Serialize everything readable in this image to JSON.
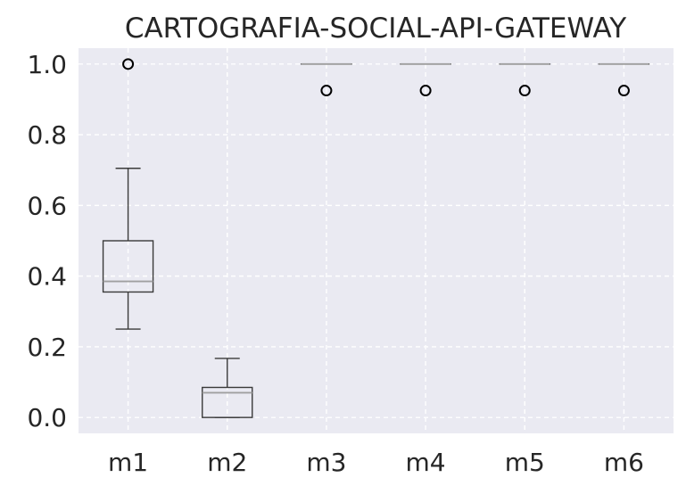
{
  "chart_data": {
    "type": "boxplot",
    "title": "CARTOGRAFIA-SOCIAL-API-GATEWAY",
    "xlabel": "",
    "ylabel": "",
    "categories": [
      "m1",
      "m2",
      "m3",
      "m4",
      "m5",
      "m6"
    ],
    "ylim": [
      -0.045,
      1.045
    ],
    "yticks": [
      0.0,
      0.2,
      0.4,
      0.6,
      0.8,
      1.0
    ],
    "ytick_labels": [
      "0.0",
      "0.2",
      "0.4",
      "0.6",
      "0.8",
      "1.0"
    ],
    "grid": true,
    "boxes": [
      {
        "whisker_low": 0.25,
        "q1": 0.355,
        "median": 0.385,
        "q3": 0.5,
        "whisker_high": 0.705,
        "outliers": [
          1.0
        ]
      },
      {
        "whisker_low": 0.0,
        "q1": 0.0,
        "median": 0.07,
        "q3": 0.085,
        "whisker_high": 0.167,
        "outliers": []
      },
      {
        "whisker_low": 1.0,
        "q1": 1.0,
        "median": 1.0,
        "q3": 1.0,
        "whisker_high": 1.0,
        "outliers": [
          0.925
        ]
      },
      {
        "whisker_low": 1.0,
        "q1": 1.0,
        "median": 1.0,
        "q3": 1.0,
        "whisker_high": 1.0,
        "outliers": [
          0.925
        ]
      },
      {
        "whisker_low": 1.0,
        "q1": 1.0,
        "median": 1.0,
        "q3": 1.0,
        "whisker_high": 1.0,
        "outliers": [
          0.925
        ]
      },
      {
        "whisker_low": 1.0,
        "q1": 1.0,
        "median": 1.0,
        "q3": 1.0,
        "whisker_high": 1.0,
        "outliers": [
          0.925
        ]
      }
    ],
    "colors": {
      "background": "#eaeaf2",
      "grid": "#ffffff",
      "box": "#3a3a3a",
      "median": "#a0a0a0",
      "outlier": "#000000",
      "text": "#262626"
    }
  }
}
